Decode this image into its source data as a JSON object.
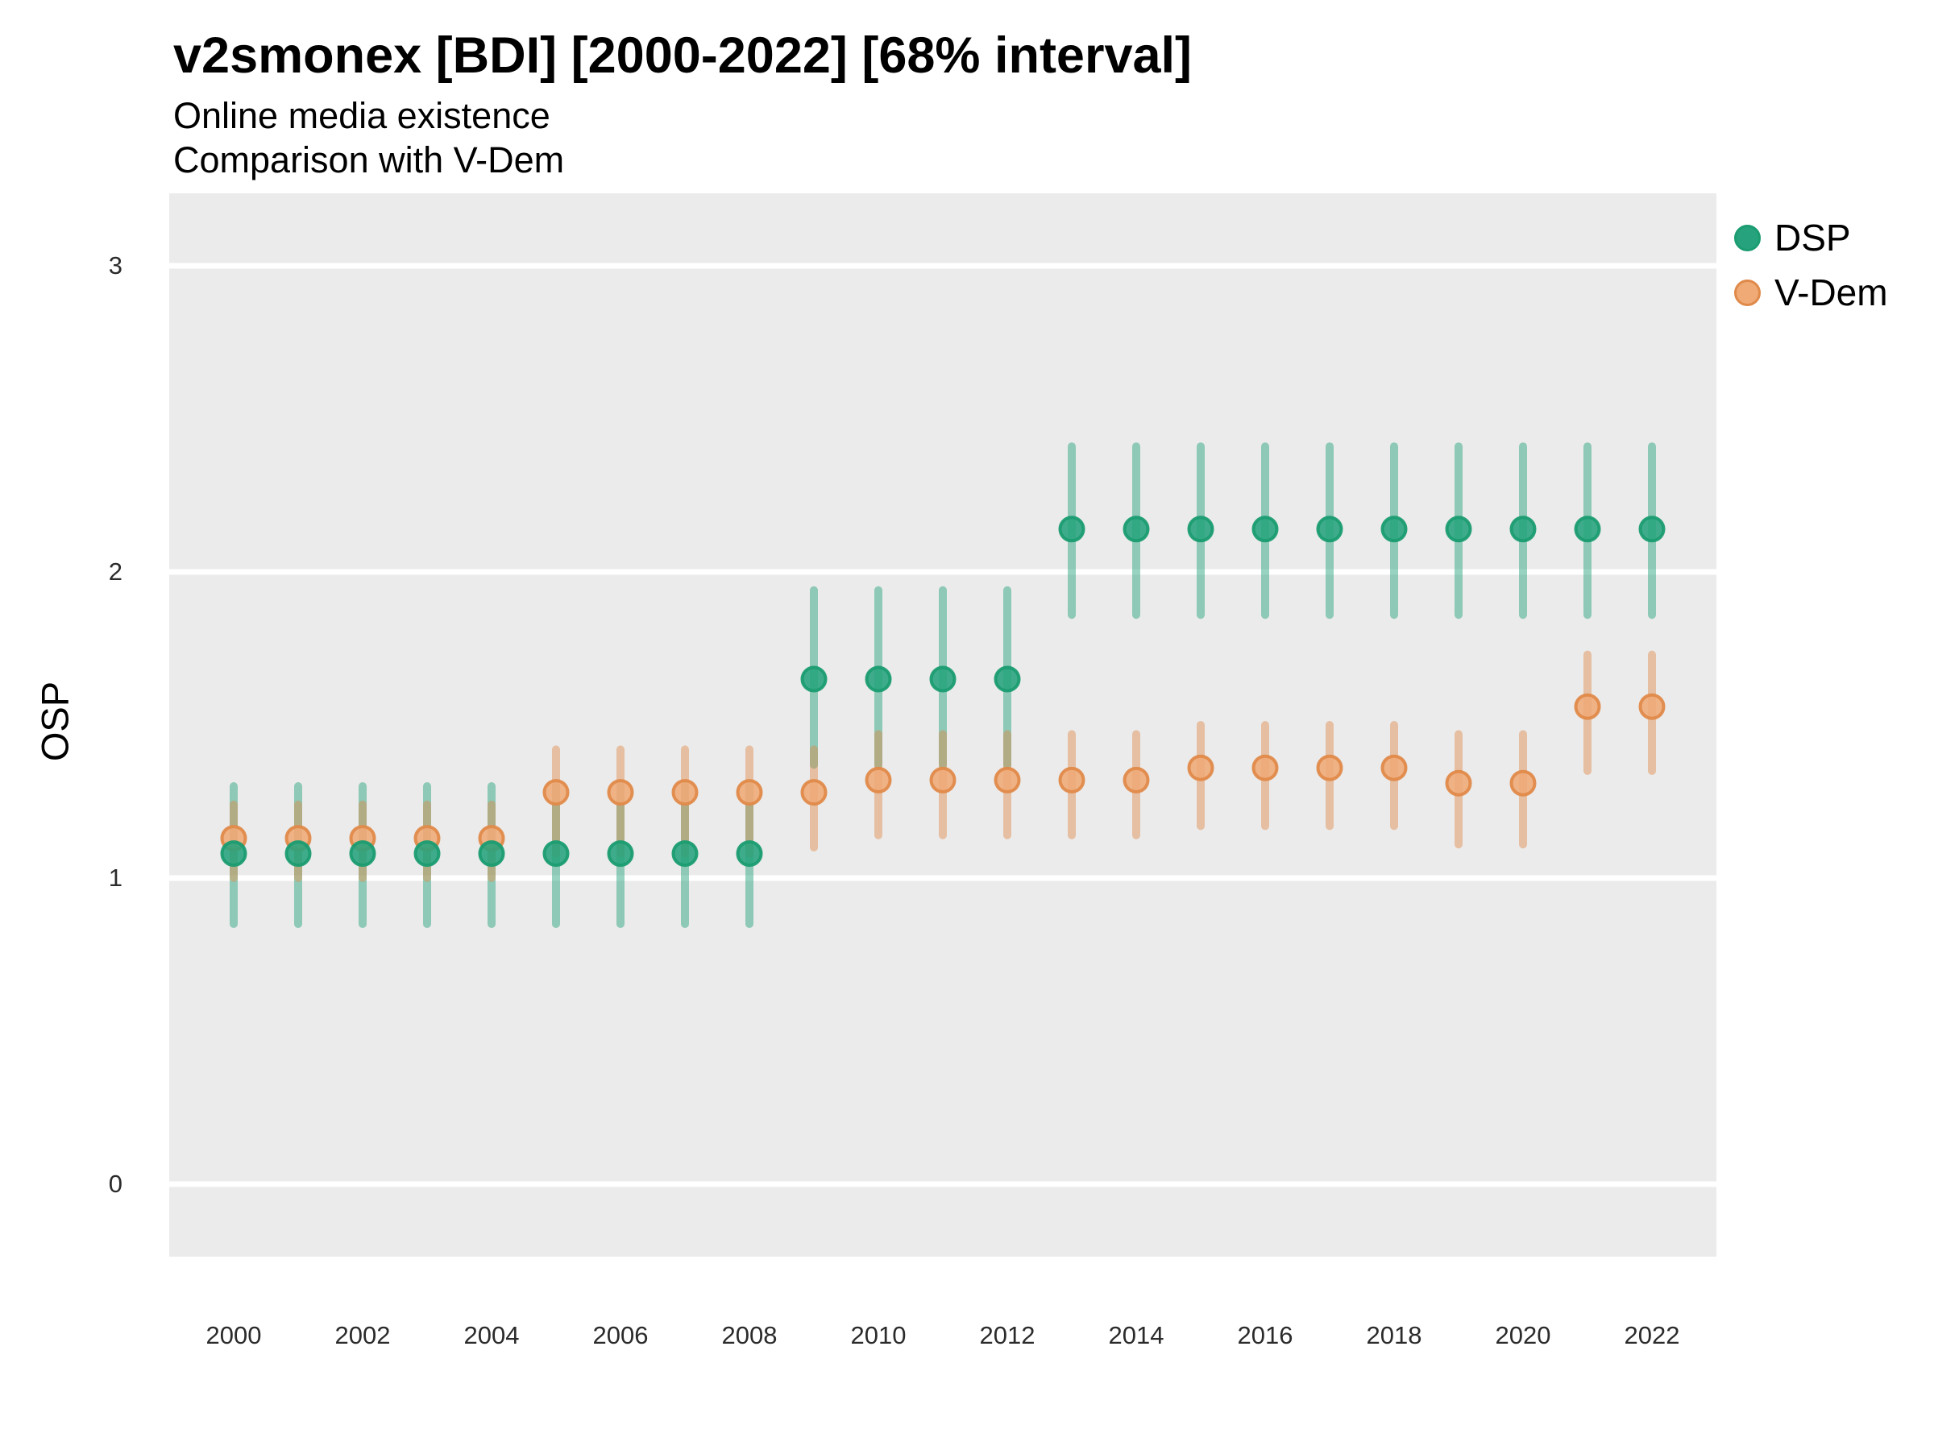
{
  "title": "v2smonex [BDI] [2000-2022] [68% interval]",
  "subtitle_line1": "Online media existence",
  "subtitle_line2": "Comparison with V-Dem",
  "y_axis": {
    "label": "OSP",
    "ticks": [
      0,
      1,
      2,
      3
    ],
    "range": [
      -0.24,
      3.24
    ]
  },
  "x_axis": {
    "label": "",
    "tick_years": [
      2000,
      2002,
      2004,
      2006,
      2008,
      2010,
      2012,
      2014,
      2016,
      2018,
      2020,
      2022
    ]
  },
  "legend": {
    "items": [
      {
        "label": "DSP",
        "color": "#26a37c",
        "ring": "#1b9c71"
      },
      {
        "label": "V-Dem",
        "color": "#efaa76",
        "ring": "#e08a4a"
      }
    ]
  },
  "colors": {
    "panel_background": "#ebebeb",
    "gridline": "#ffffff",
    "dsp_point": "#26a37c",
    "dsp_point_ring": "#1b9c71",
    "dsp_bar": "rgba(38,163,124,0.48)",
    "vdem_point": "#efaa76",
    "vdem_point_ring": "#e08a4a",
    "vdem_bar": "rgba(224,138,74,0.45)"
  },
  "chart_data": {
    "type": "scatter",
    "subtype": "pointrange",
    "interval": "68%",
    "title": "v2smonex [BDI] [2000-2022] [68% interval]",
    "xlabel": "",
    "ylabel": "OSP",
    "ylim": [
      -0.24,
      3.24
    ],
    "grid": "major-horizontal",
    "legend_position": "right-top",
    "x": [
      2000,
      2001,
      2002,
      2003,
      2004,
      2005,
      2006,
      2007,
      2008,
      2009,
      2010,
      2011,
      2012,
      2013,
      2014,
      2015,
      2016,
      2017,
      2018,
      2019,
      2020,
      2021,
      2022
    ],
    "series": [
      {
        "name": "DSP",
        "est": [
          1.08,
          1.08,
          1.08,
          1.08,
          1.08,
          1.08,
          1.08,
          1.08,
          1.08,
          1.65,
          1.65,
          1.65,
          1.65,
          2.14,
          2.14,
          2.14,
          2.14,
          2.14,
          2.14,
          2.14,
          2.14,
          2.14,
          2.14
        ],
        "lo": [
          0.85,
          0.85,
          0.85,
          0.85,
          0.85,
          0.85,
          0.85,
          0.85,
          0.85,
          1.37,
          1.37,
          1.37,
          1.37,
          1.86,
          1.86,
          1.86,
          1.86,
          1.86,
          1.86,
          1.86,
          1.86,
          1.86,
          1.86
        ],
        "hi": [
          1.3,
          1.3,
          1.3,
          1.3,
          1.3,
          1.3,
          1.3,
          1.3,
          1.3,
          1.94,
          1.94,
          1.94,
          1.94,
          2.41,
          2.41,
          2.41,
          2.41,
          2.41,
          2.41,
          2.41,
          2.41,
          2.41,
          2.41
        ]
      },
      {
        "name": "V-Dem",
        "est": [
          1.13,
          1.13,
          1.13,
          1.13,
          1.13,
          1.28,
          1.28,
          1.28,
          1.28,
          1.28,
          1.32,
          1.32,
          1.32,
          1.32,
          1.32,
          1.36,
          1.36,
          1.36,
          1.36,
          1.31,
          1.31,
          1.56,
          1.56
        ],
        "lo": [
          1.0,
          1.0,
          1.0,
          1.0,
          1.0,
          1.08,
          1.08,
          1.08,
          1.08,
          1.1,
          1.14,
          1.14,
          1.14,
          1.14,
          1.14,
          1.17,
          1.17,
          1.17,
          1.17,
          1.11,
          1.11,
          1.35,
          1.35
        ],
        "hi": [
          1.24,
          1.24,
          1.24,
          1.24,
          1.24,
          1.42,
          1.42,
          1.42,
          1.42,
          1.42,
          1.47,
          1.47,
          1.47,
          1.47,
          1.47,
          1.5,
          1.5,
          1.5,
          1.5,
          1.47,
          1.47,
          1.73,
          1.73
        ]
      }
    ]
  }
}
